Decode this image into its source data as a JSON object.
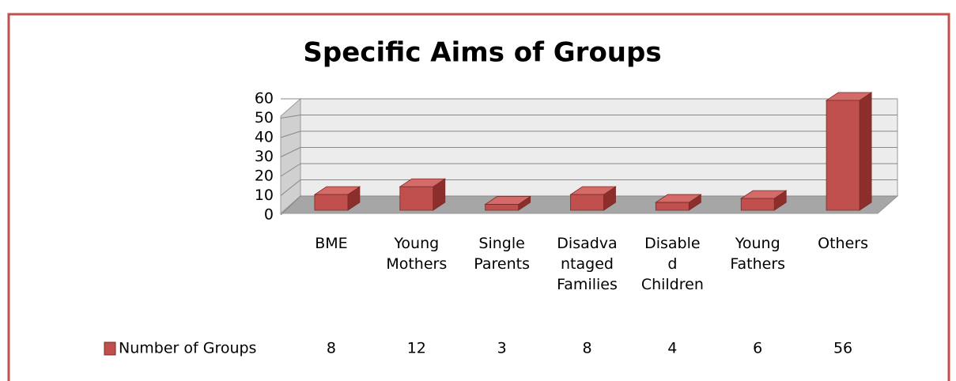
{
  "chart_data": {
    "type": "bar3d",
    "title": "Specific Aims of Groups",
    "categories": [
      "BME",
      "Young Mothers",
      "Single Parents",
      "Disadvantaged Families",
      "Disabled Children",
      "Young Fathers",
      "Others"
    ],
    "series": [
      {
        "name": "Number of Groups",
        "color": "#c0504d",
        "values": [
          8,
          12,
          3,
          8,
          4,
          6,
          56
        ]
      }
    ],
    "ylim": [
      0,
      60
    ],
    "yticks": [
      0,
      10,
      20,
      30,
      40,
      50,
      60
    ],
    "grid": true,
    "data_table": true
  }
}
